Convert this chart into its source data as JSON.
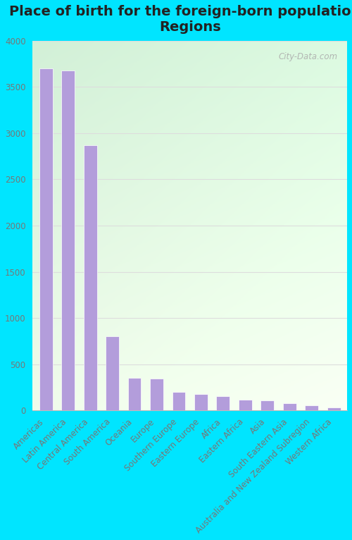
{
  "title": "Place of birth for the foreign-born population -\nRegions",
  "categories": [
    "Americas",
    "Latin America",
    "Central America",
    "South America",
    "Oceania",
    "Europe",
    "Southern Europe",
    "Eastern Europe",
    "Africa",
    "Eastern Africa",
    "Asia",
    "South Eastern Asia",
    "Australia and New Zealand Subregion",
    "Western Africa"
  ],
  "values": [
    3700,
    3675,
    2870,
    800,
    355,
    345,
    200,
    175,
    150,
    115,
    110,
    80,
    55,
    35
  ],
  "bar_color": "#b39ddb",
  "bar_edge_color": "#ffffff",
  "ylim": [
    0,
    4000
  ],
  "yticks": [
    0,
    500,
    1000,
    1500,
    2000,
    2500,
    3000,
    3500,
    4000
  ],
  "outer_bg_color": "#00e5ff",
  "title_fontsize": 14,
  "tick_fontsize": 8.5,
  "watermark": "City-Data.com",
  "grid_color": "#dddddd",
  "label_color": "#777777"
}
